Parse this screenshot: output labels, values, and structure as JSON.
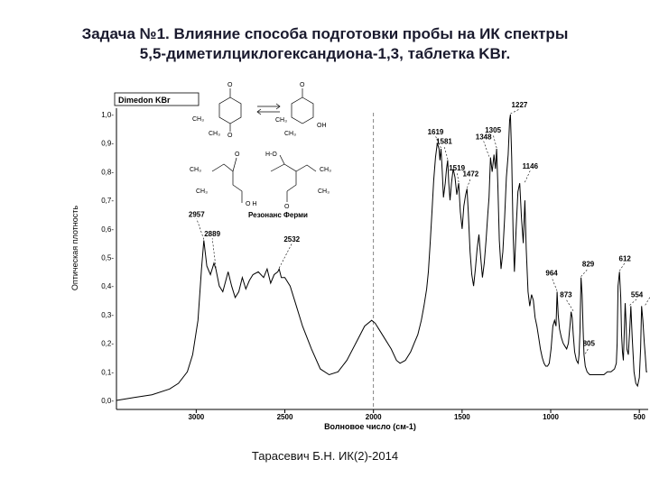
{
  "slide": {
    "title_line1": "Задача №1. Влияние способа подготовки пробы на ИК спектры",
    "title_line2": "5,5-диметилциклогександиона-1,3, таблетка KBr.",
    "footer": "Тарасевич Б.Н. ИК(2)-2014"
  },
  "chart_data": {
    "type": "line",
    "title": "Dimedon KBr",
    "xlabel": "Волновое число (см-1)",
    "ylabel": "Оптическая плотность",
    "xlim": [
      3450,
      450
    ],
    "ylim": [
      0.0,
      1.0
    ],
    "x_reversed": true,
    "xticks": [
      3000,
      2500,
      2000,
      1500,
      1000,
      500
    ],
    "xtick_labels": [
      "3000",
      "2500",
      "2000",
      "1500",
      "1000",
      "500"
    ],
    "yticks": [
      0.0,
      0.1,
      0.2,
      0.3,
      0.4,
      0.5,
      0.6,
      0.7,
      0.8,
      0.9,
      1.0
    ],
    "ytick_labels": [
      "0,0-",
      "0,1-",
      "0,2-",
      "0,3-",
      "0,4-",
      "0,5-",
      "0,6-",
      "0,7-",
      "0,8-",
      "0,9-",
      "1,0-"
    ],
    "reference_line_x": 2000,
    "series": [
      {
        "color": "#000000",
        "x": [
          3450,
          3350,
          3250,
          3150,
          3100,
          3050,
          3020,
          2990,
          2970,
          2957,
          2940,
          2920,
          2900,
          2889,
          2870,
          2850,
          2820,
          2800,
          2780,
          2760,
          2740,
          2720,
          2700,
          2680,
          2650,
          2620,
          2600,
          2580,
          2560,
          2540,
          2532,
          2520,
          2500,
          2470,
          2440,
          2400,
          2350,
          2300,
          2250,
          2200,
          2150,
          2100,
          2050,
          2010,
          1990,
          1970,
          1940,
          1900,
          1870,
          1850,
          1820,
          1790,
          1770,
          1750,
          1730,
          1715,
          1700,
          1690,
          1680,
          1670,
          1660,
          1650,
          1640,
          1630,
          1625,
          1619,
          1612,
          1605,
          1595,
          1588,
          1581,
          1575,
          1568,
          1560,
          1550,
          1540,
          1530,
          1519,
          1510,
          1500,
          1490,
          1480,
          1472,
          1465,
          1455,
          1445,
          1435,
          1425,
          1415,
          1405,
          1395,
          1385,
          1375,
          1365,
          1355,
          1348,
          1340,
          1330,
          1320,
          1312,
          1305,
          1298,
          1290,
          1280,
          1270,
          1260,
          1250,
          1240,
          1232,
          1227,
          1220,
          1212,
          1205,
          1195,
          1185,
          1175,
          1165,
          1155,
          1146,
          1138,
          1128,
          1118,
          1108,
          1098,
          1088,
          1078,
          1068,
          1058,
          1048,
          1038,
          1028,
          1018,
          1008,
          998,
          988,
          978,
          970,
          964,
          958,
          950,
          940,
          930,
          920,
          910,
          900,
          890,
          885,
          879,
          873,
          865,
          855,
          845,
          840,
          835,
          829,
          823,
          817,
          812,
          805,
          795,
          780,
          760,
          740,
          720,
          700,
          680,
          660,
          640,
          630,
          625,
          620,
          612,
          605,
          600,
          595,
          590,
          585,
          580,
          575,
          570,
          562,
          554,
          548,
          540,
          530,
          520,
          510,
          500,
          493,
          487,
          480,
          472,
          467,
          460,
          455
        ],
        "y": [
          0.0,
          0.01,
          0.02,
          0.04,
          0.06,
          0.1,
          0.16,
          0.28,
          0.46,
          0.56,
          0.47,
          0.44,
          0.48,
          0.46,
          0.4,
          0.38,
          0.45,
          0.4,
          0.36,
          0.38,
          0.43,
          0.39,
          0.42,
          0.44,
          0.45,
          0.43,
          0.46,
          0.41,
          0.44,
          0.45,
          0.46,
          0.43,
          0.43,
          0.4,
          0.34,
          0.26,
          0.18,
          0.11,
          0.09,
          0.1,
          0.14,
          0.2,
          0.26,
          0.28,
          0.27,
          0.25,
          0.22,
          0.18,
          0.14,
          0.13,
          0.14,
          0.17,
          0.2,
          0.23,
          0.28,
          0.33,
          0.39,
          0.45,
          0.55,
          0.66,
          0.77,
          0.85,
          0.9,
          0.88,
          0.84,
          0.88,
          0.8,
          0.71,
          0.76,
          0.81,
          0.84,
          0.76,
          0.7,
          0.76,
          0.81,
          0.78,
          0.72,
          0.76,
          0.66,
          0.6,
          0.68,
          0.72,
          0.74,
          0.66,
          0.52,
          0.44,
          0.4,
          0.46,
          0.53,
          0.58,
          0.5,
          0.43,
          0.48,
          0.56,
          0.65,
          0.71,
          0.85,
          0.8,
          0.86,
          0.81,
          0.88,
          0.75,
          0.56,
          0.46,
          0.52,
          0.64,
          0.78,
          0.86,
          0.98,
          1.0,
          0.85,
          0.58,
          0.45,
          0.6,
          0.73,
          0.76,
          0.64,
          0.55,
          0.7,
          0.53,
          0.38,
          0.33,
          0.37,
          0.35,
          0.29,
          0.26,
          0.22,
          0.18,
          0.15,
          0.13,
          0.12,
          0.12,
          0.13,
          0.18,
          0.26,
          0.28,
          0.26,
          0.38,
          0.3,
          0.25,
          0.22,
          0.2,
          0.19,
          0.18,
          0.2,
          0.27,
          0.31,
          0.29,
          0.23,
          0.17,
          0.14,
          0.13,
          0.16,
          0.24,
          0.43,
          0.37,
          0.25,
          0.16,
          0.12,
          0.1,
          0.09,
          0.09,
          0.09,
          0.09,
          0.09,
          0.1,
          0.1,
          0.11,
          0.13,
          0.2,
          0.4,
          0.45,
          0.36,
          0.23,
          0.17,
          0.14,
          0.24,
          0.34,
          0.27,
          0.18,
          0.16,
          0.25,
          0.33,
          0.22,
          0.1,
          0.06,
          0.05,
          0.08,
          0.18,
          0.33,
          0.28,
          0.2,
          0.16,
          0.1,
          0.1
        ]
      }
    ],
    "peak_labels": [
      {
        "label": "2957",
        "x": 2957,
        "y": 0.56
      },
      {
        "label": "2889",
        "x": 2889,
        "y": 0.46
      },
      {
        "label": "2532",
        "x": 2532,
        "y": 0.46
      },
      {
        "label": "1619",
        "x": 1619,
        "y": 0.88
      },
      {
        "label": "1581",
        "x": 1581,
        "y": 0.84
      },
      {
        "label": "1519",
        "x": 1519,
        "y": 0.76
      },
      {
        "label": "1472",
        "x": 1472,
        "y": 0.74
      },
      {
        "label": "1348",
        "x": 1348,
        "y": 0.85
      },
      {
        "label": "1305",
        "x": 1305,
        "y": 0.88
      },
      {
        "label": "1227",
        "x": 1227,
        "y": 1.0
      },
      {
        "label": "1146",
        "x": 1146,
        "y": 0.76
      },
      {
        "label": "964",
        "x": 964,
        "y": 0.38
      },
      {
        "label": "873",
        "x": 873,
        "y": 0.31
      },
      {
        "label": "829",
        "x": 829,
        "y": 0.43
      },
      {
        "label": "805",
        "x": 805,
        "y": 0.16
      },
      {
        "label": "612",
        "x": 612,
        "y": 0.45
      },
      {
        "label": "554",
        "x": 554,
        "y": 0.33
      },
      {
        "label": "467",
        "x": 467,
        "y": 0.33
      }
    ],
    "annotation": "Резонанс Ферми"
  }
}
